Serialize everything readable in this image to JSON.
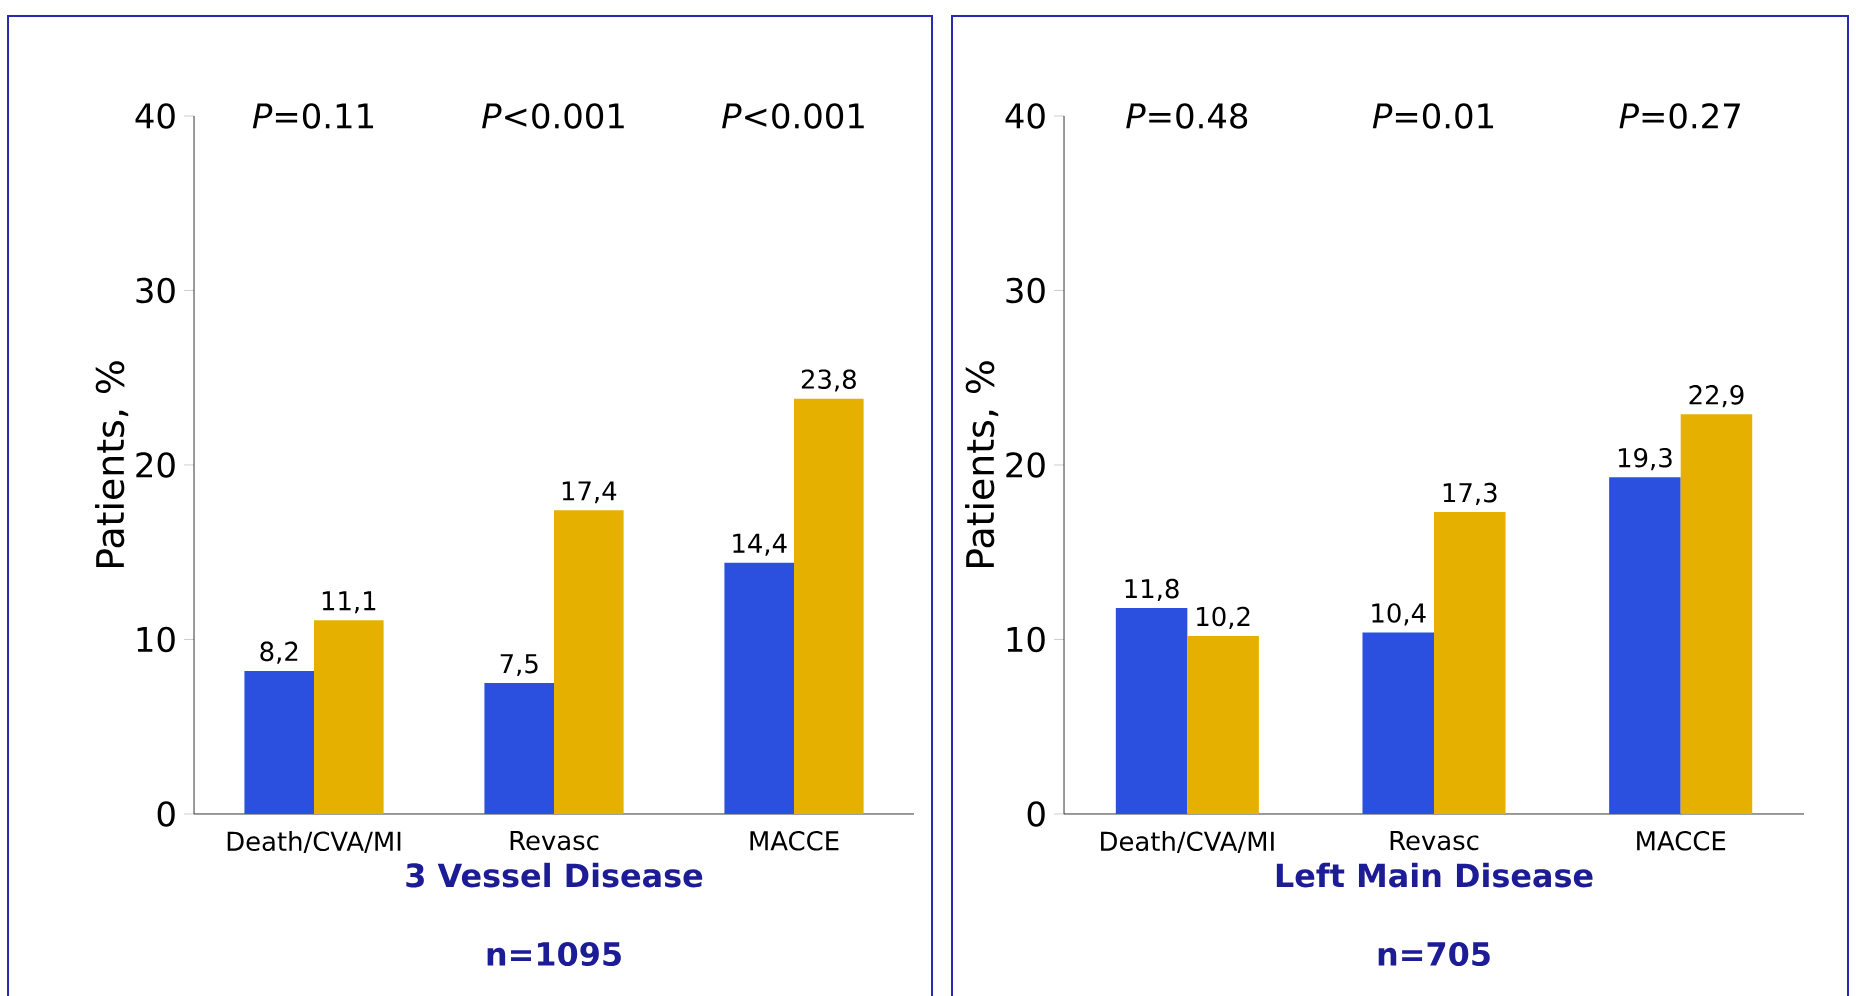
{
  "chart_data": [
    {
      "type": "bar",
      "xlabel": "3 Vessel Disease",
      "ylabel": "Patients, %",
      "categories": [
        "Death/CVA/MI",
        "Revasc",
        "MACCE"
      ],
      "series": [
        {
          "color": "#2b50e0",
          "values": [
            8.2,
            7.5,
            14.4
          ],
          "value_labels": [
            "8,2",
            "7,5",
            "14,4"
          ]
        },
        {
          "color": "#e6b000",
          "values": [
            11.1,
            17.4,
            23.8
          ],
          "value_labels": [
            "11,1",
            "17,4",
            "23,8"
          ]
        }
      ],
      "ylim": [
        0,
        40
      ],
      "yticks": [
        0,
        10,
        20,
        30,
        40
      ],
      "annotations": [
        "*P*=0.11",
        "*P*<0.001",
        "*P*<0.001",
        "n=1095"
      ]
    },
    {
      "type": "bar",
      "xlabel": "Left Main Disease",
      "ylabel": "Patients, %",
      "categories": [
        "Death/CVA/MI",
        "Revasc",
        "MACCE"
      ],
      "series": [
        {
          "color": "#2b50e0",
          "values": [
            11.8,
            10.4,
            19.3
          ],
          "value_labels": [
            "11,8",
            "10,4",
            "19,3"
          ]
        },
        {
          "color": "#e6b000",
          "values": [
            10.2,
            17.3,
            22.9
          ],
          "value_labels": [
            "10,2",
            "17,3",
            "22,9"
          ]
        }
      ],
      "ylim": [
        0,
        40
      ],
      "yticks": [
        0,
        10,
        20,
        30,
        40
      ],
      "annotations": [
        "*P*=0.48",
        "*P*=0.01",
        "*P*=0.27",
        "n=705"
      ]
    }
  ]
}
